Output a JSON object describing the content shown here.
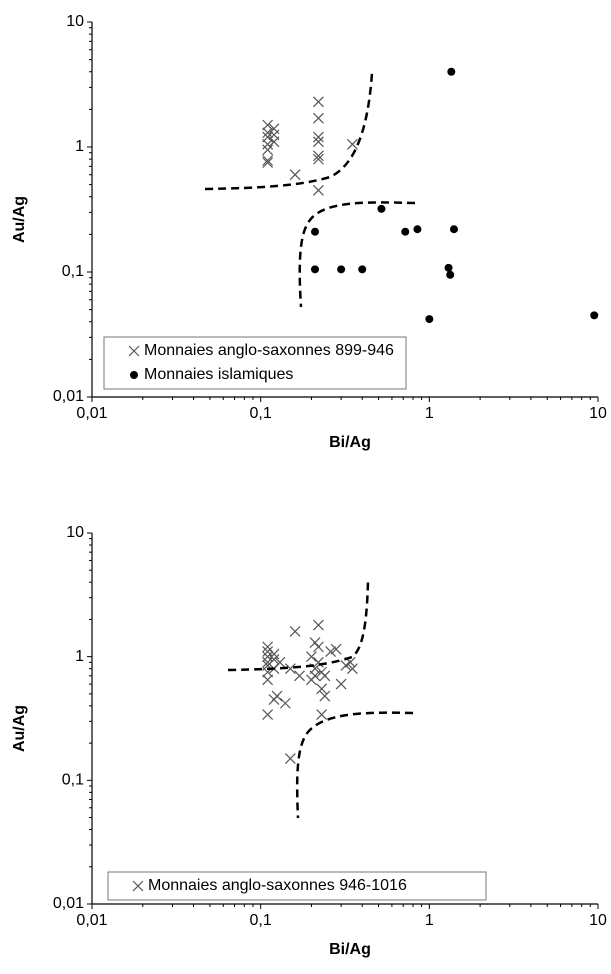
{
  "chart_data": [
    {
      "type": "scatter",
      "xlabel": "Bi/Ag",
      "ylabel": "Au/Ag",
      "xscale": "log",
      "yscale": "log",
      "xlim": [
        0.01,
        10
      ],
      "ylim": [
        0.01,
        10
      ],
      "xticks": [
        {
          "value": 0.01,
          "label": "0,01"
        },
        {
          "value": 0.1,
          "label": "0,1"
        },
        1,
        10
      ],
      "yticks": [
        {
          "value": 0.01,
          "label": "0,01"
        },
        {
          "value": 0.1,
          "label": "0,1"
        },
        1,
        10
      ],
      "legend": "lower left",
      "series": [
        {
          "name": "Monnaies anglo-saxonnes 899-946",
          "marker": "x",
          "color": "#555555",
          "x": [
            0.11,
            0.11,
            0.11,
            0.11,
            0.11,
            0.11,
            0.11,
            0.12,
            0.12,
            0.12,
            0.16,
            0.22,
            0.22,
            0.22,
            0.22,
            0.22,
            0.22,
            0.22,
            0.35
          ],
          "values": [
            1.5,
            1.3,
            1.2,
            1.05,
            0.95,
            0.78,
            0.75,
            1.4,
            1.25,
            1.1,
            0.6,
            2.3,
            1.7,
            1.2,
            1.1,
            0.85,
            0.8,
            0.45,
            1.05
          ]
        },
        {
          "name": "Monnaies islamiques",
          "marker": "o",
          "color": "#000000",
          "x": [
            1.35,
            0.52,
            0.21,
            0.21,
            0.3,
            0.4,
            0.72,
            0.85,
            1.4,
            1.3,
            1.33,
            1.0,
            9.5
          ],
          "values": [
            4.0,
            0.32,
            0.21,
            0.105,
            0.105,
            0.105,
            0.21,
            0.22,
            0.22,
            0.108,
            0.095,
            0.042,
            0.045
          ]
        }
      ]
    },
    {
      "type": "scatter",
      "xlabel": "Bi/Ag",
      "ylabel": "Au/Ag",
      "xscale": "log",
      "yscale": "log",
      "xlim": [
        0.01,
        10
      ],
      "ylim": [
        0.01,
        10
      ],
      "xticks": [
        {
          "value": 0.01,
          "label": "0,01"
        },
        {
          "value": 0.1,
          "label": "0,1"
        },
        1,
        10
      ],
      "yticks": [
        {
          "value": 0.01,
          "label": "0,01"
        },
        {
          "value": 0.1,
          "label": "0,1"
        },
        1,
        10
      ],
      "legend": "lower left",
      "series": [
        {
          "name": "Monnaies anglo-saxonnes 946-1016",
          "marker": "x",
          "color": "#555555",
          "x": [
            0.11,
            0.11,
            0.11,
            0.11,
            0.11,
            0.11,
            0.11,
            0.11,
            0.12,
            0.12,
            0.12,
            0.12,
            0.125,
            0.13,
            0.14,
            0.15,
            0.15,
            0.16,
            0.17,
            0.2,
            0.21,
            0.21,
            0.21,
            0.22,
            0.22,
            0.22,
            0.23,
            0.23,
            0.23,
            0.24,
            0.26,
            0.28,
            0.3,
            0.32,
            0.34,
            0.35,
            0.2,
            0.24
          ],
          "values": [
            1.2,
            1.1,
            1.0,
            0.9,
            0.85,
            0.75,
            0.65,
            0.34,
            1.05,
            0.95,
            0.8,
            0.45,
            0.48,
            0.9,
            0.42,
            0.15,
            0.8,
            1.6,
            0.7,
            1.0,
            1.3,
            0.8,
            0.7,
            1.8,
            1.2,
            0.9,
            0.75,
            0.55,
            0.34,
            0.48,
            1.1,
            1.15,
            0.6,
            0.85,
            0.9,
            0.8,
            0.65,
            0.7
          ]
        }
      ]
    }
  ]
}
